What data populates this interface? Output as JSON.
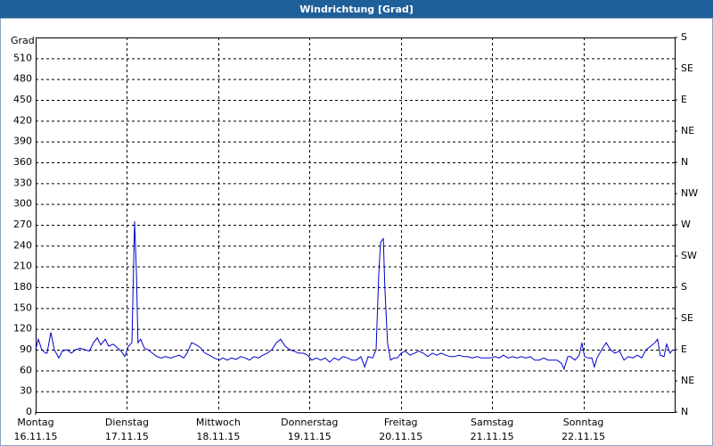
{
  "chart_data": {
    "type": "line",
    "title": "Windrichtung [Grad]",
    "ylabel": "Grad",
    "grid": true,
    "xlim": [
      0,
      168
    ],
    "xticks": [
      {
        "value": 0,
        "label": "Montag",
        "date": "16.11.15"
      },
      {
        "value": 24,
        "label": "Dienstag",
        "date": "17.11.15"
      },
      {
        "value": 48,
        "label": "Mittwoch",
        "date": "18.11.15"
      },
      {
        "value": 72,
        "label": "Donnerstag",
        "date": "19.11.15"
      },
      {
        "value": 96,
        "label": "Freitag",
        "date": "20.11.15"
      },
      {
        "value": 120,
        "label": "Samstag",
        "date": "21.11.15"
      },
      {
        "value": 144,
        "label": "Sonntag",
        "date": "22.11.15"
      }
    ],
    "ylim": [
      0,
      540
    ],
    "yticks": [
      0,
      30,
      60,
      90,
      120,
      150,
      180,
      210,
      240,
      270,
      300,
      330,
      360,
      390,
      420,
      450,
      480,
      510
    ],
    "y2lim": [
      0,
      540
    ],
    "y2ticks": [
      {
        "value": 0,
        "label": "N"
      },
      {
        "value": 45,
        "label": "NE"
      },
      {
        "value": 90,
        "label": "E"
      },
      {
        "value": 135,
        "label": "SE"
      },
      {
        "value": 180,
        "label": "S"
      },
      {
        "value": 225,
        "label": "SW"
      },
      {
        "value": 270,
        "label": "W"
      },
      {
        "value": 315,
        "label": "NW"
      },
      {
        "value": 360,
        "label": "N"
      },
      {
        "value": 405,
        "label": "NE"
      },
      {
        "value": 450,
        "label": "E"
      },
      {
        "value": 495,
        "label": "SE"
      },
      {
        "value": 540,
        "label": "S"
      }
    ],
    "x": [
      0,
      0.7,
      1.6,
      2.6,
      3.0,
      4.0,
      4.9,
      6.1,
      7.0,
      8.2,
      9.4,
      10.5,
      11.7,
      12.9,
      14.1,
      15.2,
      16.2,
      17.1,
      18.3,
      19.2,
      20.4,
      21.6,
      22.5,
      23.4,
      24.4,
      25.3,
      26.0,
      26.5,
      26.9,
      27.6,
      28.6,
      29.5,
      30.7,
      31.9,
      33.0,
      34.2,
      35.4,
      36.6,
      37.7,
      38.9,
      39.8,
      41.0,
      42.2,
      43.3,
      44.5,
      45.7,
      46.9,
      48.3,
      49.2,
      50.4,
      51.5,
      52.7,
      53.9,
      55.1,
      56.2,
      57.4,
      58.6,
      59.7,
      60.9,
      62.1,
      63.3,
      64.4,
      65.6,
      66.8,
      67.9,
      69.1,
      70.3,
      71.5,
      72.6,
      73.8,
      75.0,
      76.1,
      77.3,
      78.5,
      79.7,
      80.8,
      82.0,
      83.2,
      84.3,
      85.5,
      86.5,
      87.4,
      88.6,
      89.5,
      90.2,
      90.7,
      91.4,
      91.8,
      92.5,
      93.3,
      94.2,
      95.1,
      96.1,
      97.2,
      98.4,
      99.6,
      100.7,
      101.9,
      103.1,
      104.3,
      105.4,
      106.6,
      107.8,
      109.0,
      110.1,
      111.3,
      112.5,
      113.6,
      114.8,
      116.0,
      117.2,
      118.3,
      119.5,
      120.7,
      121.9,
      123.0,
      124.2,
      125.4,
      126.5,
      127.7,
      128.9,
      130.1,
      131.2,
      132.4,
      133.6,
      134.7,
      135.9,
      137.1,
      138.3,
      138.9,
      139.9,
      140.6,
      141.8,
      142.9,
      143.6,
      144.3,
      145.3,
      146.2,
      146.9,
      147.6,
      148.8,
      150.0,
      151.1,
      152.3,
      153.5,
      154.7,
      155.8,
      157.0,
      158.2,
      159.3,
      160.5,
      161.7,
      162.8,
      163.5,
      164.2,
      165.2,
      165.9,
      166.8,
      167.5
    ],
    "series": [
      {
        "color": "#0000cc",
        "values": [
          90,
          105,
          90,
          85,
          85,
          115,
          90,
          78,
          88,
          90,
          85,
          90,
          92,
          90,
          88,
          100,
          107,
          97,
          105,
          95,
          98,
          92,
          88,
          80,
          95,
          100,
          275,
          200,
          100,
          105,
          92,
          90,
          85,
          80,
          78,
          80,
          78,
          80,
          82,
          78,
          85,
          100,
          97,
          93,
          85,
          82,
          78,
          75,
          78,
          75,
          78,
          76,
          80,
          78,
          75,
          80,
          78,
          82,
          85,
          90,
          100,
          105,
          95,
          90,
          88,
          85,
          85,
          82,
          75,
          78,
          75,
          78,
          72,
          78,
          75,
          80,
          78,
          75,
          75,
          80,
          65,
          80,
          78,
          90,
          200,
          245,
          250,
          180,
          100,
          75,
          78,
          78,
          85,
          88,
          82,
          85,
          88,
          85,
          80,
          85,
          82,
          85,
          82,
          80,
          80,
          82,
          80,
          80,
          78,
          80,
          78,
          78,
          78,
          80,
          78,
          82,
          78,
          80,
          78,
          80,
          78,
          80,
          75,
          75,
          78,
          75,
          75,
          75,
          70,
          62,
          80,
          80,
          75,
          82,
          100,
          80,
          78,
          78,
          65,
          78,
          90,
          100,
          90,
          85,
          88,
          75,
          80,
          78,
          82,
          78,
          90,
          95,
          100,
          105,
          82,
          80,
          98,
          85,
          90
        ]
      }
    ]
  }
}
